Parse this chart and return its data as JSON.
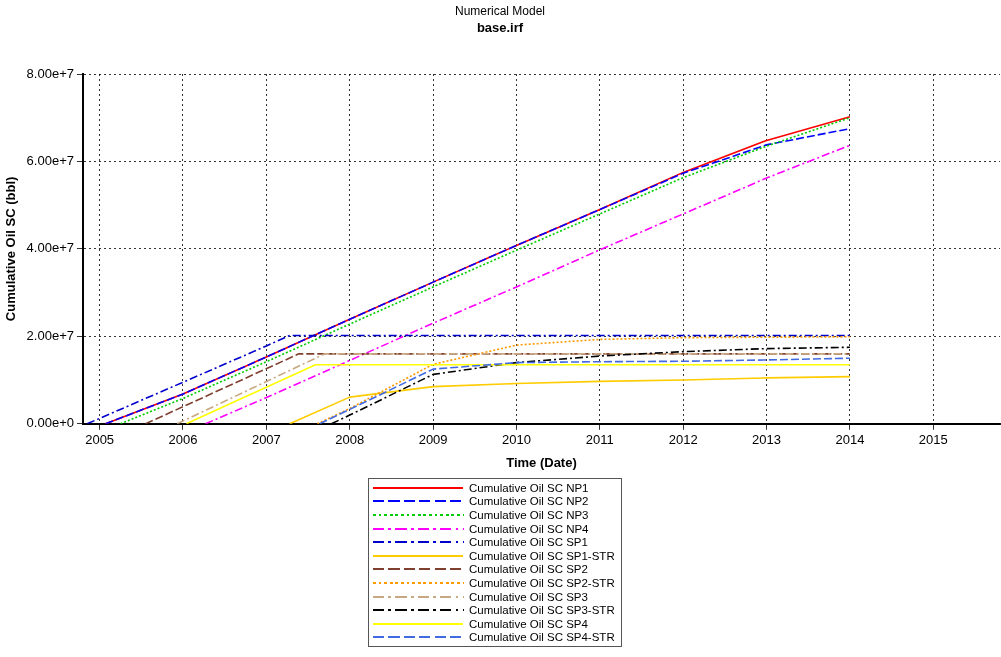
{
  "chart_data": {
    "type": "line",
    "title": "Numerical Model",
    "subtitle": "base.irf",
    "xlabel": "Time (Date)",
    "ylabel": "Cumulative Oil SC (bbl)",
    "xlim": [
      2004.8,
      2015.8
    ],
    "xticks": [
      2005,
      2006,
      2007,
      2008,
      2009,
      2010,
      2011,
      2012,
      2013,
      2014,
      2015
    ],
    "ylim": [
      0,
      80000000
    ],
    "yticks": [
      {
        "value": 0,
        "label": "0.00e+0"
      },
      {
        "value": 20000000,
        "label": "2.00e+7"
      },
      {
        "value": 40000000,
        "label": "4.00e+7"
      },
      {
        "value": 60000000,
        "label": "6.00e+7"
      },
      {
        "value": 80000000,
        "label": "8.00e+7"
      }
    ],
    "grid": true,
    "legend": "bottom",
    "marker": "none",
    "series": [
      {
        "name": "Cumulative Oil SC NP1",
        "color": "#ff0000",
        "line_style": "solid",
        "x": [
          2005.07,
          2006,
          2007,
          2008,
          2009,
          2010,
          2011,
          2012,
          2013,
          2014
        ],
        "values": [
          0,
          6800000,
          15300000,
          23900000,
          32400000,
          40800000,
          49000000,
          57500000,
          64800000,
          70200000
        ]
      },
      {
        "name": "Cumulative Oil SC NP2",
        "color": "#0000ff",
        "line_style": "dashed",
        "x": [
          2005.07,
          2006,
          2007,
          2008,
          2009,
          2010,
          2011,
          2012,
          2013,
          2014
        ],
        "values": [
          0,
          6800000,
          15300000,
          23900000,
          32400000,
          40800000,
          49000000,
          57300000,
          63800000,
          67500000
        ]
      },
      {
        "name": "Cumulative Oil SC NP3",
        "color": "#00cc00",
        "line_style": "dotted",
        "x": [
          2005.25,
          2006,
          2007,
          2008,
          2009,
          2010,
          2011,
          2012,
          2013,
          2014
        ],
        "values": [
          0,
          5800000,
          14200000,
          22800000,
          31300000,
          39700000,
          48000000,
          56300000,
          63500000,
          70000000
        ]
      },
      {
        "name": "Cumulative Oil SC NP4",
        "color": "#ff00ff",
        "line_style": "dashdot",
        "x": [
          2006.27,
          2007,
          2008,
          2009,
          2010,
          2011,
          2012,
          2013,
          2014
        ],
        "values": [
          0,
          6000000,
          14500000,
          23000000,
          31300000,
          39800000,
          48000000,
          56200000,
          63700000
        ]
      },
      {
        "name": "Cumulative Oil SC SP1",
        "color": "#0000cc",
        "line_style": "dashdot",
        "x": [
          2004.85,
          2006,
          2007,
          2007.28,
          2014
        ],
        "values": [
          0,
          9500000,
          17800000,
          20200000,
          20200000
        ]
      },
      {
        "name": "Cumulative Oil SC SP1-STR",
        "color": "#ffcc00",
        "line_style": "solid",
        "x": [
          2007.28,
          2008,
          2008.5,
          2009,
          2010,
          2011,
          2012,
          2013,
          2014
        ],
        "values": [
          0,
          6100000,
          7300000,
          8500000,
          9200000,
          9700000,
          10000000,
          10500000,
          10800000
        ]
      },
      {
        "name": "Cumulative Oil SC SP2",
        "color": "#804030",
        "line_style": "dashed",
        "x": [
          2005.55,
          2007.39,
          2014
        ],
        "values": [
          0,
          16000000,
          16000000
        ]
      },
      {
        "name": "Cumulative Oil SC SP2-STR",
        "color": "#ff9900",
        "line_style": "dotted",
        "x": [
          2007.61,
          2008,
          2009,
          2010,
          2011,
          2012,
          2013,
          2014
        ],
        "values": [
          0,
          3500000,
          13600000,
          18000000,
          19300000,
          19700000,
          19800000,
          19900000
        ]
      },
      {
        "name": "Cumulative Oil SC SP3",
        "color": "#c8a882",
        "line_style": "dashdot",
        "x": [
          2005.93,
          2007.7,
          2014
        ],
        "values": [
          0,
          16000000,
          16000000
        ]
      },
      {
        "name": "Cumulative Oil SC SP3-STR",
        "color": "#000000",
        "line_style": "dashdot",
        "x": [
          2007.78,
          2008,
          2009,
          2010,
          2011,
          2012,
          2013,
          2014
        ],
        "values": [
          0,
          2000000,
          11300000,
          14000000,
          15500000,
          16500000,
          17200000,
          17500000
        ]
      },
      {
        "name": "Cumulative Oil SC SP4",
        "color": "#ffff00",
        "line_style": "solid",
        "x": [
          2006.04,
          2007.59,
          2014
        ],
        "values": [
          0,
          13500000,
          13500000
        ]
      },
      {
        "name": "Cumulative Oil SC SP4-STR",
        "color": "#4169e1",
        "line_style": "dashed",
        "x": [
          2007.64,
          2008,
          2009,
          2010,
          2011,
          2012,
          2013,
          2014
        ],
        "values": [
          0,
          3300000,
          12500000,
          14000000,
          14200000,
          14300000,
          14600000,
          15000000
        ]
      }
    ]
  }
}
